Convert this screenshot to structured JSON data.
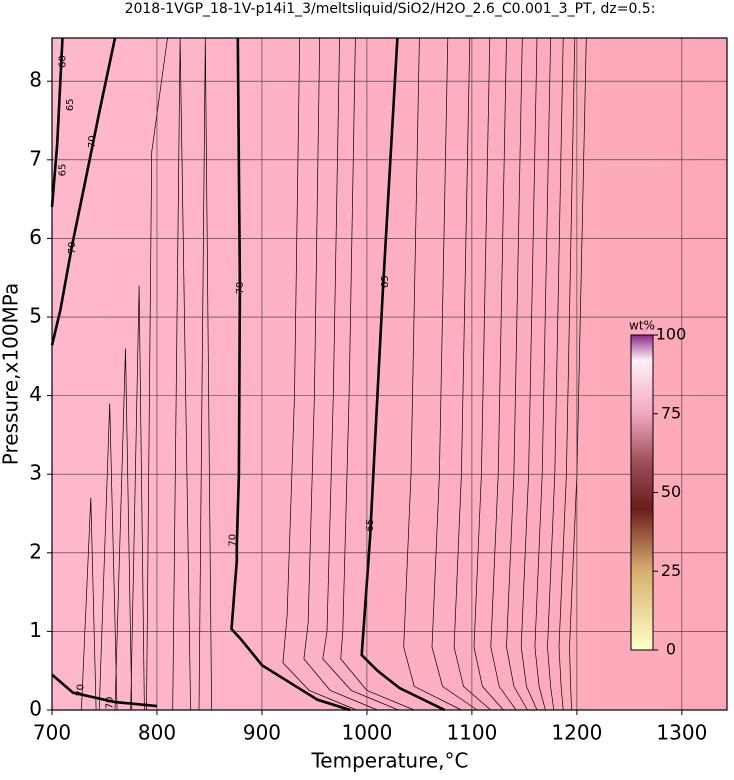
{
  "chart_data": {
    "type": "contour",
    "title": "2018-1VGP_18-1V-p14i1_3/meltsliquid/SiO2/H2O_2.6_C0.001_3_PT, dz=0.5:",
    "xlabel": "Temperature,°C",
    "ylabel": "Pressure,x100MPa",
    "xlim": [
      700,
      1343
    ],
    "ylim": [
      0,
      8.55
    ],
    "xticks": [
      700,
      800,
      900,
      1000,
      1100,
      1200,
      1300
    ],
    "yticks": [
      0,
      1,
      2,
      3,
      4,
      5,
      6,
      7,
      8
    ],
    "grid": true,
    "background_colors": [
      "#ffb8cb",
      "#fda8b8"
    ],
    "line_color": "#000000",
    "contours": [
      {
        "bold": true,
        "x": [
          877,
          879,
          878,
          876,
          876,
          871,
          880,
          900,
          930,
          953,
          984
        ],
        "y": [
          8.55,
          5.4,
          3,
          2.1,
          1.9,
          1.03,
          0.9,
          0.57,
          0.32,
          0.13,
          0
        ]
      },
      {
        "bold": true,
        "x": [
          1029,
          1015,
          1003,
          995,
          1010,
          1031,
          1074
        ],
        "y": [
          8.55,
          5.3,
          2.2,
          0.7,
          0.5,
          0.28,
          0
        ]
      },
      {
        "bold": true,
        "x": [
          760,
          745,
          731,
          719,
          708,
          700
        ],
        "y": [
          8.55,
          7.6,
          6.68,
          5.9,
          5.09,
          4.64
        ]
      },
      {
        "bold": true,
        "x": [
          710,
          705,
          700
        ],
        "y": [
          8.55,
          7.2,
          6.4
        ]
      },
      {
        "bold": true,
        "x": [
          700,
          720,
          760,
          800
        ],
        "y": [
          0.45,
          0.22,
          0.1,
          0.05
        ]
      },
      {
        "bold": false,
        "x": [
          936,
          931,
          924,
          920,
          945,
          990
        ],
        "y": [
          8.55,
          4,
          1.2,
          0.6,
          0.25,
          0
        ]
      },
      {
        "bold": false,
        "x": [
          955,
          950,
          944,
          940,
          965,
          1010
        ],
        "y": [
          8.55,
          4,
          1.1,
          0.65,
          0.25,
          0
        ]
      },
      {
        "bold": false,
        "x": [
          974,
          968,
          962,
          958,
          985,
          1030
        ],
        "y": [
          8.55,
          4,
          1.0,
          0.65,
          0.25,
          0
        ]
      },
      {
        "bold": false,
        "x": [
          989,
          983,
          977,
          975,
          1000,
          1045
        ],
        "y": [
          8.55,
          4,
          1.0,
          0.65,
          0.25,
          0
        ]
      },
      {
        "bold": false,
        "x": [
          1050,
          1042,
          1035,
          1045,
          1090
        ],
        "y": [
          8.55,
          3,
          0.8,
          0.3,
          0
        ]
      },
      {
        "bold": false,
        "x": [
          1077,
          1069,
          1062,
          1072,
          1105
        ],
        "y": [
          8.55,
          3,
          0.8,
          0.3,
          0
        ]
      },
      {
        "bold": false,
        "x": [
          1098,
          1090,
          1083,
          1092,
          1118
        ],
        "y": [
          8.55,
          3,
          0.8,
          0.3,
          0
        ]
      },
      {
        "bold": false,
        "x": [
          1117,
          1109,
          1102,
          1110,
          1130
        ],
        "y": [
          8.55,
          3,
          0.8,
          0.3,
          0
        ]
      },
      {
        "bold": false,
        "x": [
          1133,
          1125,
          1118,
          1126,
          1142
        ],
        "y": [
          8.55,
          3,
          0.8,
          0.3,
          0
        ]
      },
      {
        "bold": false,
        "x": [
          1148,
          1140,
          1133,
          1140,
          1153
        ],
        "y": [
          8.55,
          3,
          0.8,
          0.3,
          0
        ]
      },
      {
        "bold": false,
        "x": [
          1162,
          1154,
          1147,
          1152,
          1162
        ],
        "y": [
          8.55,
          3,
          0.8,
          0.3,
          0
        ]
      },
      {
        "bold": false,
        "x": [
          1175,
          1167,
          1160,
          1164,
          1170
        ],
        "y": [
          8.55,
          3,
          0.8,
          0.3,
          0
        ]
      },
      {
        "bold": false,
        "x": [
          1187,
          1179,
          1172,
          1175,
          1178
        ],
        "y": [
          8.55,
          3,
          0.8,
          0.3,
          0
        ]
      },
      {
        "bold": false,
        "x": [
          1198,
          1190,
          1183,
          1185,
          1187
        ],
        "y": [
          8.55,
          3,
          0.8,
          0.3,
          0
        ]
      },
      {
        "bold": false,
        "x": [
          1209,
          1200,
          1193,
          1194,
          1195
        ],
        "y": [
          8.55,
          3,
          0.8,
          0.3,
          0
        ]
      },
      {
        "bold": false,
        "x": [
          790,
          795,
          810
        ],
        "y": [
          0,
          7.1,
          8.55
        ]
      },
      {
        "bold": false,
        "x": [
          775,
          783,
          788
        ],
        "y": [
          0,
          5.4,
          0
        ]
      },
      {
        "bold": false,
        "x": [
          760,
          770,
          776
        ],
        "y": [
          0,
          4.6,
          0
        ]
      },
      {
        "bold": false,
        "x": [
          745,
          755,
          762
        ],
        "y": [
          0,
          3.9,
          0
        ]
      },
      {
        "bold": false,
        "x": [
          728,
          737,
          742
        ],
        "y": [
          0,
          2.7,
          0
        ]
      },
      {
        "bold": false,
        "x": [
          815,
          822,
          832
        ],
        "y": [
          0,
          8.55,
          0
        ]
      },
      {
        "bold": false,
        "x": [
          840,
          846,
          852
        ],
        "y": [
          0,
          8.55,
          0
        ]
      }
    ],
    "contour_labels": [
      {
        "label": "70",
        "x": 879,
        "y": 5.37
      },
      {
        "label": "70",
        "x": 872,
        "y": 2.16
      },
      {
        "label": "65",
        "x": 1017,
        "y": 5.45
      },
      {
        "label": "65",
        "x": 1003,
        "y": 2.35
      },
      {
        "label": "70",
        "x": 738,
        "y": 7.23
      },
      {
        "label": "70",
        "x": 719,
        "y": 5.88
      },
      {
        "label": "65",
        "x": 717,
        "y": 7.7
      },
      {
        "label": "65",
        "x": 710,
        "y": 6.87
      },
      {
        "label": "60",
        "x": 710,
        "y": 8.25
      },
      {
        "label": "70",
        "x": 727,
        "y": 0.25
      },
      {
        "label": "70",
        "x": 755,
        "y": 0.09
      }
    ],
    "colorbar": {
      "label": "wt%",
      "lim": [
        0,
        100
      ],
      "ticks": [
        0,
        25,
        50,
        75,
        100
      ],
      "stops": [
        [
          0,
          "#ffffc8"
        ],
        [
          25,
          "#d8b070"
        ],
        [
          45,
          "#6b1c1c"
        ],
        [
          60,
          "#a0505a"
        ],
        [
          75,
          "#f0a8c0"
        ],
        [
          92,
          "#fff0f8"
        ],
        [
          100,
          "#8a2a8a"
        ]
      ]
    }
  }
}
